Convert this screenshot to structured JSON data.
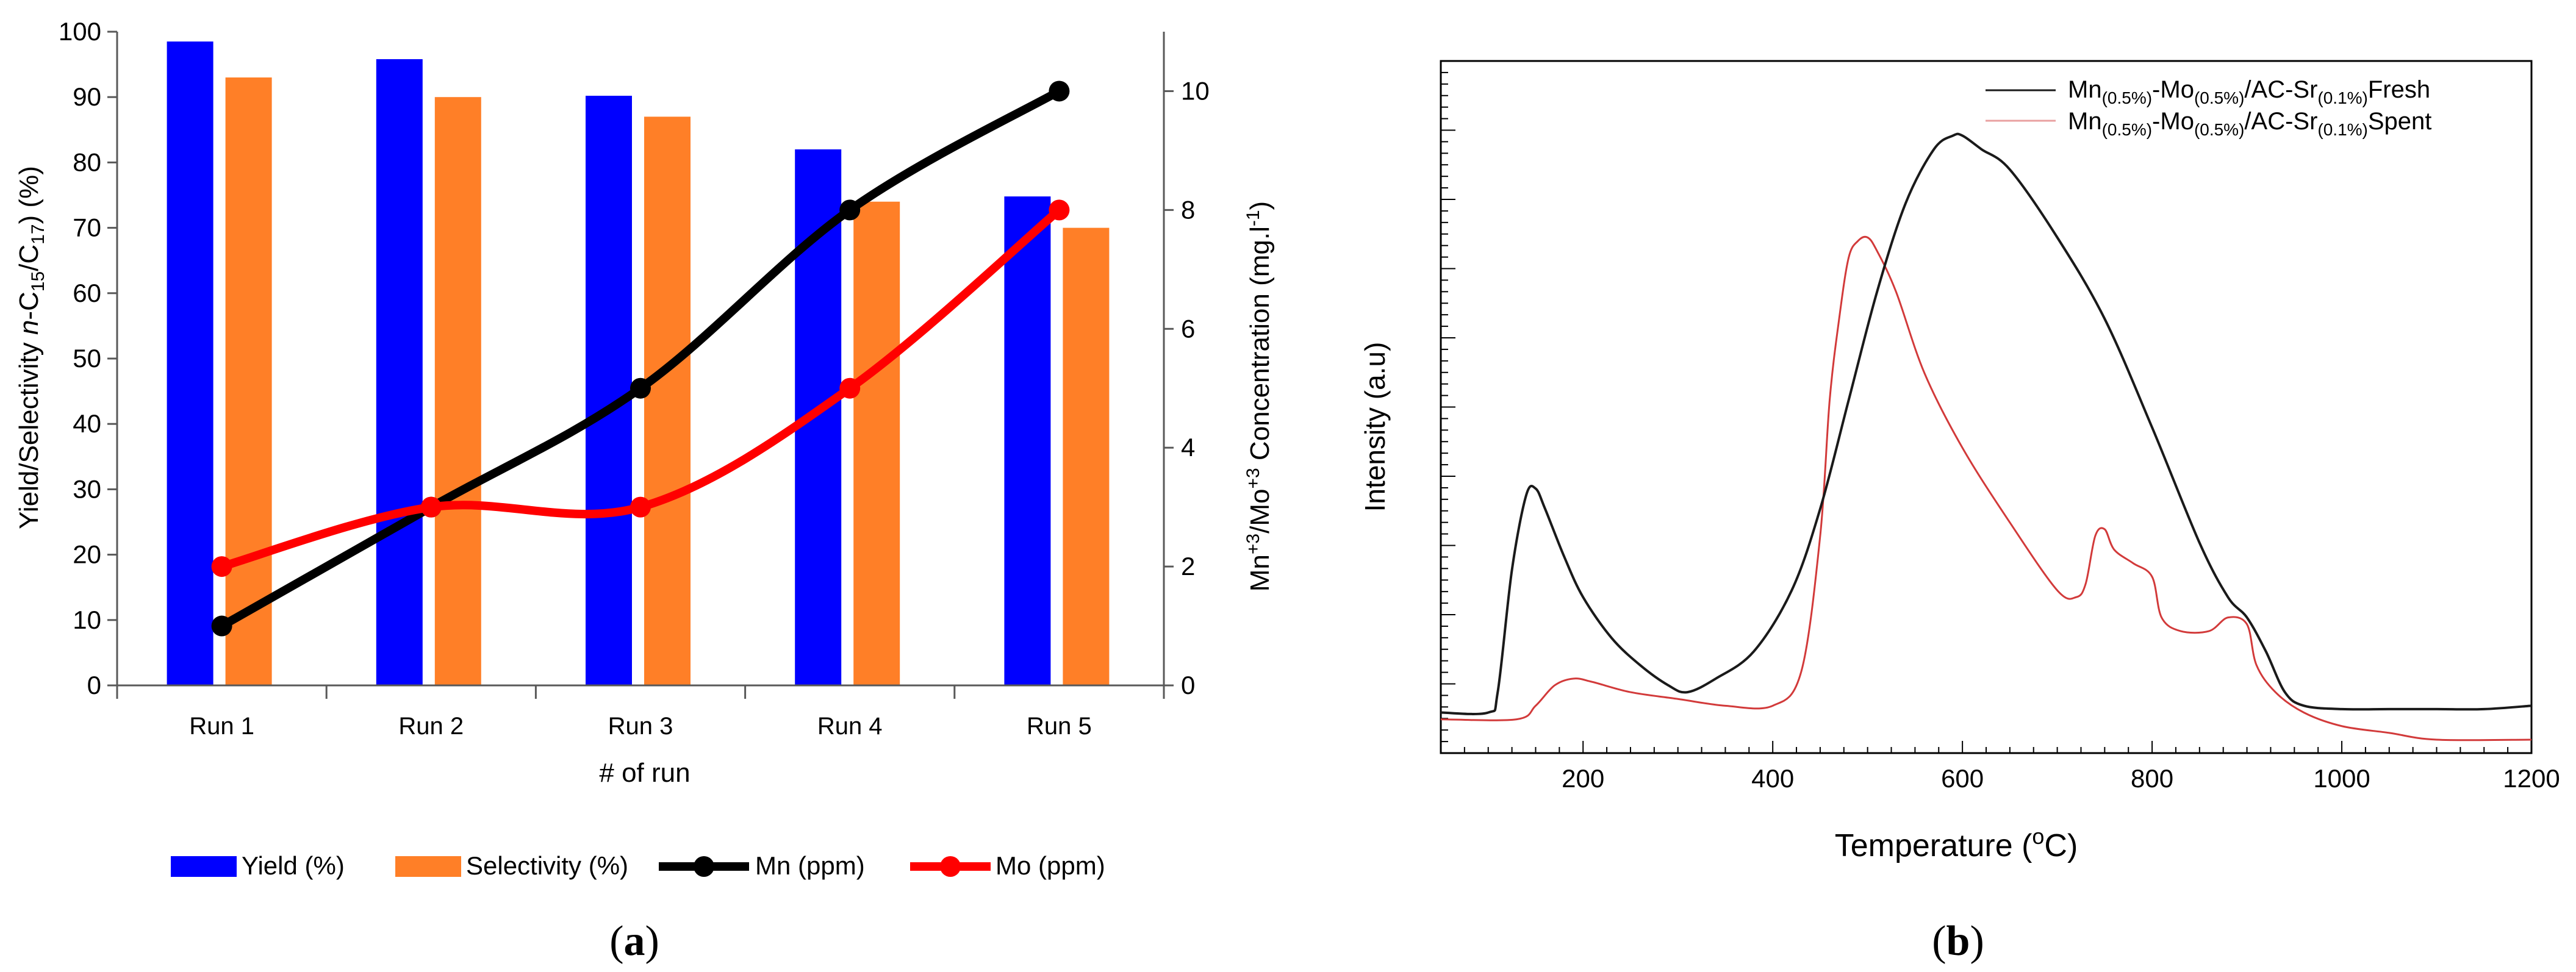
{
  "chart_data": [
    {
      "panel_label": "a",
      "type": "bar",
      "xlabel": "# of run",
      "ylabel": {
        "pre": "Yield/Selectivity ",
        "italic": "n",
        "mid": "-C",
        "sub1": "15",
        "slash": "/C",
        "sub2": "17",
        "post": ") (%)",
        "open": "("
      },
      "y2label": {
        "a": "Mn",
        "sup1": "+3",
        "b": "/Mo",
        "sup2": "+3",
        "c": " Concentration (mg.l",
        "sup3": "-1",
        "d": ")"
      },
      "categories": [
        "Run 1",
        "Run 2",
        "Run 3",
        "Run 4",
        "Run 5"
      ],
      "ylim": [
        0,
        100
      ],
      "yticks": [
        "0",
        "10",
        "20",
        "30",
        "40",
        "50",
        "60",
        "70",
        "80",
        "90",
        "100"
      ],
      "y2lim": [
        0,
        11
      ],
      "y2ticks": [
        "0",
        "2",
        "4",
        "6",
        "8",
        "10"
      ],
      "grid": false,
      "legend_position": "bottom",
      "series": [
        {
          "name": "Yield (%)",
          "kind": "bar",
          "axis": "left",
          "color": "#0000ff",
          "values": [
            98.5,
            95.8,
            90.2,
            82.0,
            74.8
          ]
        },
        {
          "name": "Selectivity (%)",
          "kind": "bar",
          "axis": "left",
          "color": "#ff7f27",
          "values": [
            93.0,
            90.0,
            87.0,
            74.0,
            70.0
          ]
        },
        {
          "name": "Mn (ppm)",
          "kind": "line",
          "axis": "right",
          "color": "#000000",
          "values": [
            1,
            3,
            5,
            8,
            10
          ]
        },
        {
          "name": "Mo (ppm)",
          "kind": "line",
          "axis": "right",
          "color": "#ff0000",
          "values": [
            2,
            3,
            3,
            5,
            8
          ]
        }
      ]
    },
    {
      "panel_label": "b",
      "type": "line",
      "xlabel": {
        "a": "Temperature (",
        "sup": "o",
        "b": "C)"
      },
      "ylabel": "Intensity (a.u)",
      "xlim": [
        50,
        1200
      ],
      "xticks": [
        200,
        400,
        600,
        800,
        1000,
        1200
      ],
      "ylim": [
        0,
        1
      ],
      "grid": false,
      "legend_position": "top-right",
      "legend": [
        {
          "parts": [
            "Mn",
            "(0.5%)",
            "-Mo",
            "(0.5%)",
            "/AC-Sr",
            "(0.1%)",
            "Fresh"
          ]
        },
        {
          "parts": [
            "Mn",
            "(0.5%)",
            "-Mo",
            "(0.5%)",
            "/AC-Sr",
            "(0.1%)",
            "Spent"
          ]
        }
      ],
      "series": [
        {
          "color": "#1a1a1a",
          "x": [
            50,
            100,
            110,
            125,
            140,
            150,
            160,
            180,
            200,
            230,
            260,
            290,
            310,
            340,
            380,
            420,
            450,
            480,
            510,
            540,
            570,
            590,
            600,
            620,
            650,
            700,
            750,
            800,
            850,
            880,
            900,
            920,
            940,
            960,
            1000,
            1050,
            1100,
            1150,
            1200
          ],
          "y": [
            0.04,
            0.04,
            0.07,
            0.25,
            0.36,
            0.37,
            0.34,
            0.27,
            0.21,
            0.15,
            0.11,
            0.08,
            0.07,
            0.09,
            0.13,
            0.22,
            0.34,
            0.5,
            0.66,
            0.79,
            0.87,
            0.89,
            0.89,
            0.87,
            0.84,
            0.74,
            0.62,
            0.46,
            0.29,
            0.21,
            0.18,
            0.13,
            0.07,
            0.05,
            0.045,
            0.045,
            0.045,
            0.045,
            0.05
          ]
        },
        {
          "color": "#d23a3a",
          "x": [
            50,
            130,
            150,
            170,
            190,
            210,
            250,
            300,
            350,
            400,
            430,
            450,
            460,
            470,
            480,
            490,
            500,
            510,
            530,
            560,
            600,
            650,
            700,
            720,
            730,
            740,
            750,
            760,
            780,
            800,
            810,
            830,
            860,
            880,
            900,
            910,
            930,
            960,
            1000,
            1050,
            1100,
            1200
          ],
          "y": [
            0.03,
            0.03,
            0.05,
            0.08,
            0.09,
            0.085,
            0.07,
            0.06,
            0.05,
            0.05,
            0.1,
            0.3,
            0.5,
            0.62,
            0.71,
            0.735,
            0.74,
            0.72,
            0.66,
            0.54,
            0.43,
            0.32,
            0.22,
            0.21,
            0.23,
            0.3,
            0.31,
            0.28,
            0.26,
            0.24,
            0.18,
            0.16,
            0.16,
            0.18,
            0.17,
            0.11,
            0.07,
            0.04,
            0.02,
            0.01,
            0.0,
            0.0
          ]
        }
      ]
    }
  ]
}
